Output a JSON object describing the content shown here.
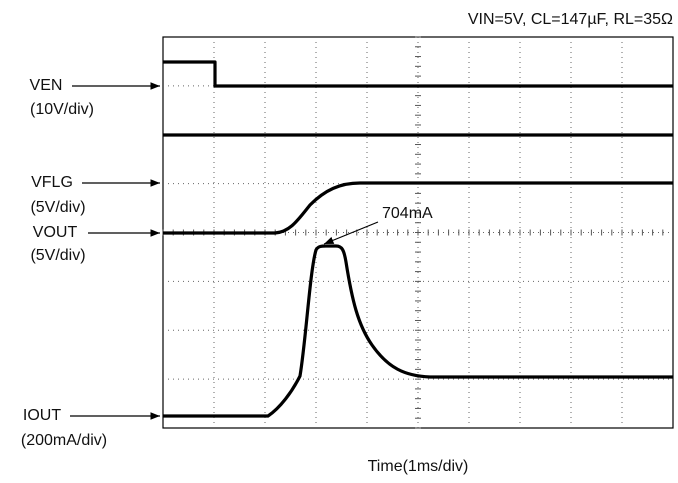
{
  "header": {
    "conditions": "VIN=5V, CL=147µF, RL=35Ω"
  },
  "labels": {
    "ven": {
      "name": "VEN",
      "scale": "(10V/div)"
    },
    "vflg": {
      "name": "VFLG",
      "scale": "(5V/div)"
    },
    "vout": {
      "name": "VOUT",
      "scale": "(5V/div)"
    },
    "iout": {
      "name": "IOUT",
      "scale": "(200mA/div)"
    }
  },
  "annotation": "704mA",
  "x_label": "Time(1ms/div)"
}
